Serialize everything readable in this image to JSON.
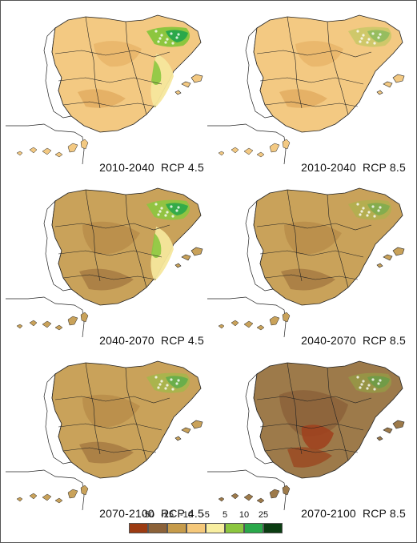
{
  "panels": [
    {
      "period": "2010-2040",
      "scenario": "RCP 4.5",
      "tone": "light"
    },
    {
      "period": "2010-2040",
      "scenario": "RCP 8.5",
      "tone": "light"
    },
    {
      "period": "2040-2070",
      "scenario": "RCP 4.5",
      "tone": "mid"
    },
    {
      "period": "2040-2070",
      "scenario": "RCP 8.5",
      "tone": "mid"
    },
    {
      "period": "2070-2100",
      "scenario": "RCP 4.5",
      "tone": "mid"
    },
    {
      "period": "2070-2100",
      "scenario": "RCP 8.5",
      "tone": "dark"
    }
  ],
  "legend": {
    "labels": [
      "-50",
      "-25",
      "-10",
      "-5",
      "5",
      "10",
      "25"
    ],
    "colors": [
      "#9c3b12",
      "#8c6239",
      "#c69b4a",
      "#f5c87a",
      "#f8eea0",
      "#8cc63f",
      "#2aa84a",
      "#0b3d12"
    ]
  },
  "palette": {
    "light": "#f3c982",
    "mid": "#c9a25a",
    "dark": "#9d7a4a",
    "darker": "#8c6239",
    "red": "#a0401c",
    "green": "#2aa84a",
    "lightgreen": "#8cc63f",
    "paleyellow": "#f5e79c",
    "outline": "#222222"
  }
}
